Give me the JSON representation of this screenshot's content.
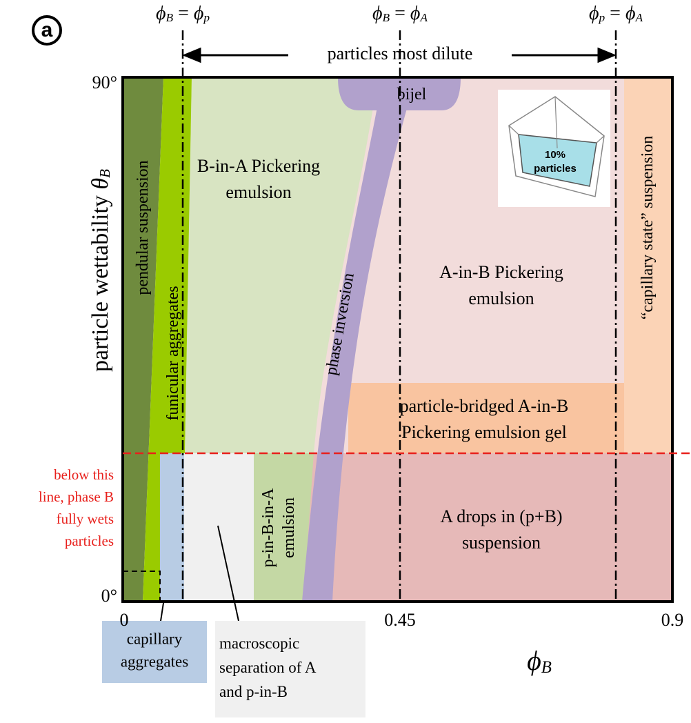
{
  "panel_label": "a",
  "top_labels": [
    {
      "parts": [
        "ϕ",
        "B",
        " = ",
        "ϕ",
        "p"
      ]
    },
    {
      "parts": [
        "ϕ",
        "B",
        " = ",
        "ϕ",
        "A"
      ]
    },
    {
      "parts": [
        "ϕ",
        "p",
        " = ",
        "ϕ",
        "A"
      ]
    }
  ],
  "arrow_label": "particles most dilute",
  "y_axis": {
    "parts": [
      "particle wettability ",
      "θ",
      "B"
    ],
    "ticks": [
      "90°",
      "0°"
    ]
  },
  "x_axis": {
    "parts": [
      "ϕ",
      "B"
    ],
    "ticks": [
      "0",
      "0.45",
      "0.9"
    ]
  },
  "regions": {
    "pendular": [
      "pendular suspension"
    ],
    "funicular": [
      "funicular aggregates"
    ],
    "b_in_a": [
      "B-in-A Pickering",
      "emulsion"
    ],
    "bijel": [
      "bijel"
    ],
    "phase_inversion": [
      "phase inversion"
    ],
    "a_in_b": [
      "A-in-B Pickering",
      "emulsion"
    ],
    "capillary_state": [
      "“capillary state” suspension"
    ],
    "bridged": [
      "particle-bridged A-in-B",
      "Pickering emulsion gel"
    ],
    "p_in_b_in_a": [
      "p-in-B-in-A",
      "emulsion"
    ],
    "a_drops": [
      "A drops in (p+B)",
      "suspension"
    ]
  },
  "red_note": [
    "below this",
    "line, phase B",
    "fully wets",
    "particles"
  ],
  "callouts": {
    "capillary": [
      "capillary",
      "aggregates"
    ],
    "macroscopic": [
      "macroscopic",
      "separation of A",
      "and p-in-B"
    ]
  },
  "inset": [
    "10%",
    "particles"
  ]
}
